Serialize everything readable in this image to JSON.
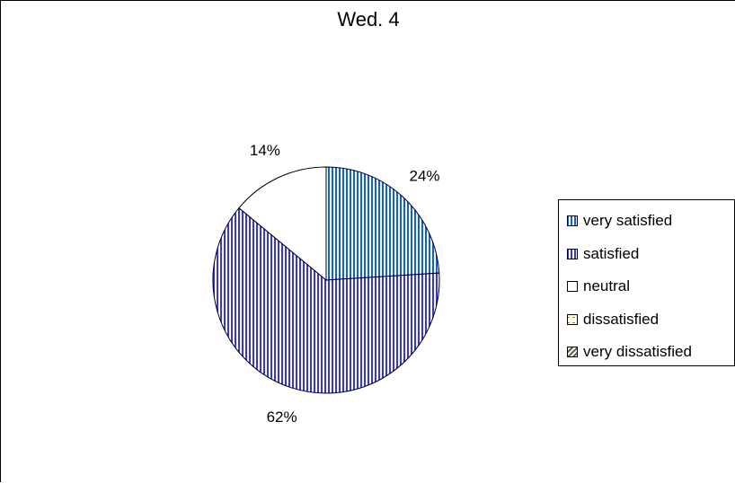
{
  "chart_data": {
    "type": "pie",
    "title": "Wed. 4",
    "categories": [
      "very satisfied",
      "satisfied",
      "neutral",
      "dissatisfied",
      "very dissatisfied"
    ],
    "values": [
      24,
      62,
      14,
      0,
      0
    ],
    "labels": [
      "24%",
      "62%",
      "14%",
      "",
      ""
    ],
    "colors": [
      "#0a5cff",
      "#3333ff",
      "#ffffff",
      "#fffce0",
      "#5a5a3c"
    ],
    "legend_position": "right"
  }
}
